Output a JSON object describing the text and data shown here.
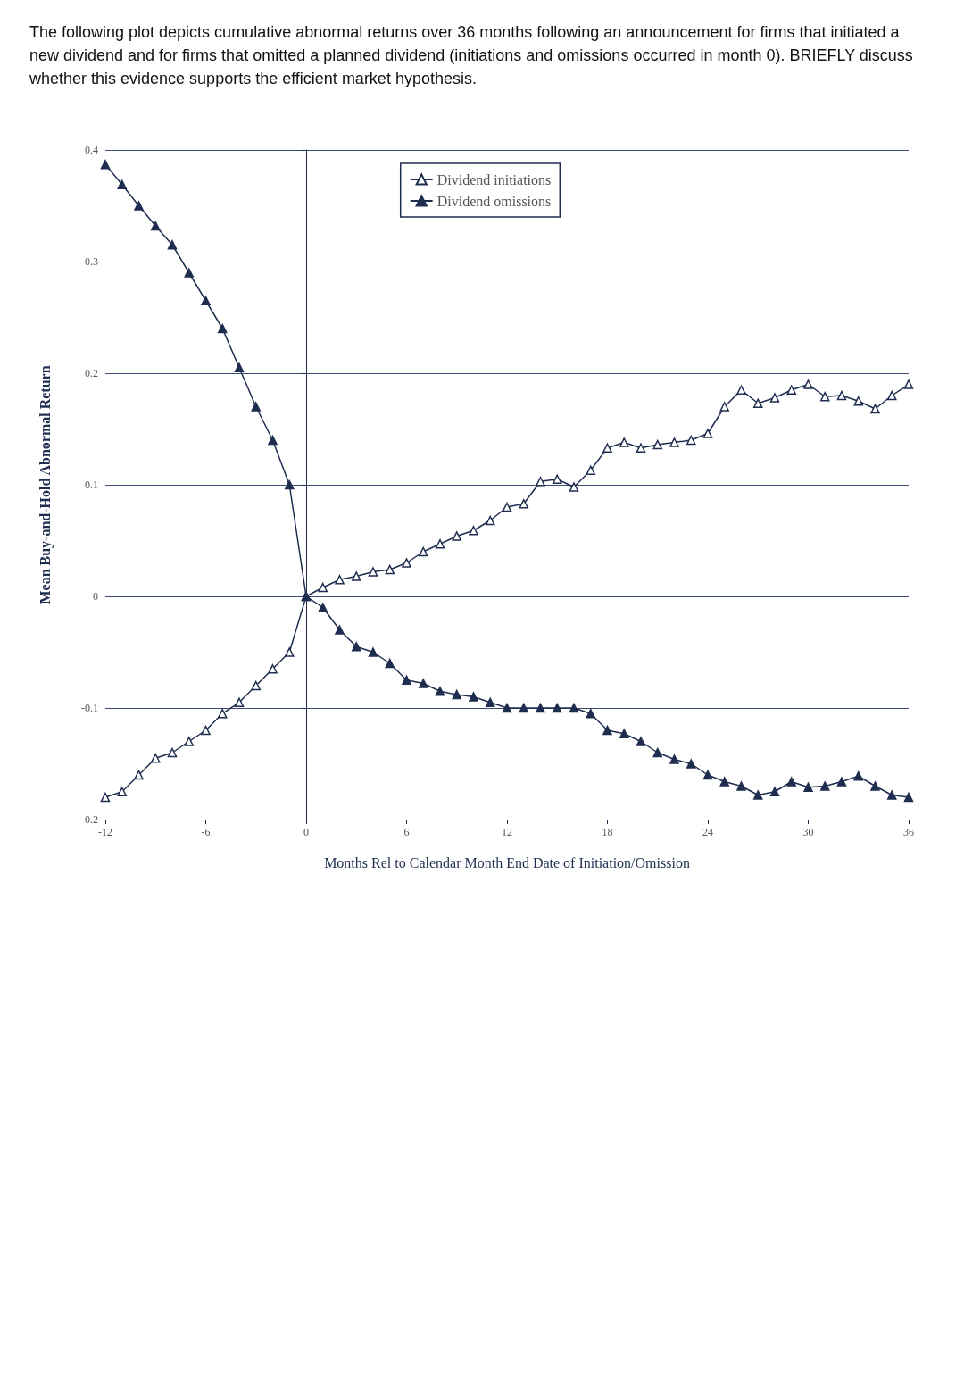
{
  "chart_data": {
    "type": "line",
    "title": "The following plot depicts cumulative abnormal returns over 36 months following an announcement for firms that initiated a new dividend and for firms that omitted a planned dividend (initiations and omissions occurred in month 0). BRIEFLY discuss whether this evidence supports the efficient market hypothesis.",
    "xlabel": "Months Rel to Calendar Month End Date of Initiation/Omission",
    "ylabel": "Mean Buy-and-Hold Abnormal Return",
    "x": [
      -12,
      -11,
      -10,
      -9,
      -8,
      -7,
      -6,
      -5,
      -4,
      -3,
      -2,
      -1,
      0,
      1,
      2,
      3,
      4,
      5,
      6,
      7,
      8,
      9,
      10,
      11,
      12,
      13,
      14,
      15,
      16,
      17,
      18,
      19,
      20,
      21,
      22,
      23,
      24,
      25,
      26,
      27,
      28,
      29,
      30,
      31,
      32,
      33,
      34,
      35,
      36
    ],
    "series": [
      {
        "name": "Dividend initiations",
        "color": "#1f2d4f",
        "marker": "triangle-open",
        "values": [
          -0.18,
          -0.175,
          -0.16,
          -0.145,
          -0.14,
          -0.13,
          -0.12,
          -0.105,
          -0.095,
          -0.08,
          -0.065,
          -0.05,
          0,
          0.008,
          0.015,
          0.018,
          0.022,
          0.024,
          0.03,
          0.04,
          0.047,
          0.054,
          0.059,
          0.068,
          0.08,
          0.083,
          0.103,
          0.105,
          0.098,
          0.113,
          0.133,
          0.138,
          0.133,
          0.136,
          0.138,
          0.14,
          0.146,
          0.17,
          0.185,
          0.173,
          0.178,
          0.185,
          0.19,
          0.179,
          0.18,
          0.175,
          0.168,
          0.18,
          0.19
        ]
      },
      {
        "name": "Dividend omissions",
        "color": "#1f2d4f",
        "marker": "triangle",
        "values": [
          0.387,
          0.369,
          0.35,
          0.332,
          0.315,
          0.29,
          0.265,
          0.24,
          0.205,
          0.17,
          0.14,
          0.1,
          0,
          -0.01,
          -0.03,
          -0.045,
          -0.05,
          -0.06,
          -0.075,
          -0.078,
          -0.085,
          -0.088,
          -0.09,
          -0.095,
          -0.1,
          -0.1,
          -0.1,
          -0.1,
          -0.1,
          -0.105,
          -0.12,
          -0.123,
          -0.13,
          -0.14,
          -0.146,
          -0.15,
          -0.16,
          -0.166,
          -0.17,
          -0.178,
          -0.175,
          -0.166,
          -0.171,
          -0.17,
          -0.166,
          -0.161,
          -0.17,
          -0.178,
          -0.18
        ]
      }
    ],
    "xlim": [
      -12,
      36
    ],
    "xticks": [
      -12,
      -6,
      0,
      6,
      12,
      18,
      24,
      30,
      36
    ],
    "ylim": [
      -0.2,
      0.4
    ],
    "yticks": [
      -0.2,
      -0.1,
      0,
      0.1,
      0.2,
      0.3,
      0.4
    ],
    "grid": "y",
    "legend": "top"
  }
}
